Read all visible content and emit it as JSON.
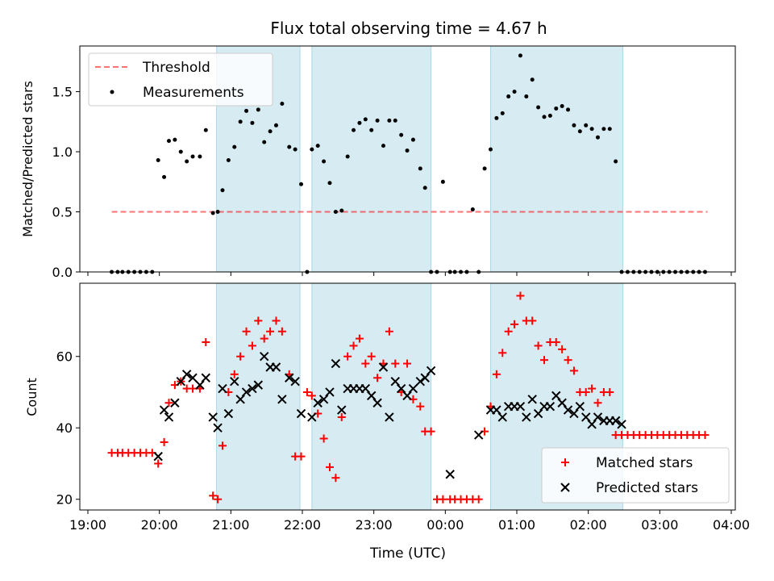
{
  "figure": {
    "title": "Flux total observing time = 4.67 h",
    "xlabel": "Time (UTC)"
  },
  "colors": {
    "band": "#add8e6",
    "threshold": "#ff0000",
    "measurement": "#000000",
    "matched": "#ff0000",
    "predicted": "#000000"
  },
  "chart_data": [
    {
      "type": "scatter",
      "ylabel": "Matched/Predicted stars",
      "xlim": [
        "19:00",
        "04:00"
      ],
      "ylim": [
        0,
        1.88
      ],
      "yticks": [
        "0.0",
        "0.5",
        "1.0",
        "1.5"
      ],
      "legend_position": "upper left",
      "shaded_spans": [
        [
          "20:48",
          "21:58"
        ],
        [
          "22:08",
          "23:48"
        ],
        [
          "00:38",
          "02:29"
        ]
      ],
      "threshold": {
        "name": "Threshold",
        "value": 0.5,
        "x_range": [
          "19:20",
          "03:40"
        ]
      },
      "series": [
        {
          "name": "Measurements",
          "x": [
            "19:20",
            "19:25",
            "19:29",
            "19:34",
            "19:39",
            "19:44",
            "19:49",
            "19:54",
            "19:59",
            "20:04",
            "20:08",
            "20:13",
            "20:18",
            "20:23",
            "20:28",
            "20:34",
            "20:39",
            "20:45",
            "20:49",
            "20:53",
            "20:58",
            "21:03",
            "21:08",
            "21:13",
            "21:18",
            "21:23",
            "21:28",
            "21:33",
            "21:38",
            "21:43",
            "21:49",
            "21:54",
            "21:59",
            "22:04",
            "22:08",
            "22:13",
            "22:18",
            "22:23",
            "22:28",
            "22:33",
            "22:38",
            "22:43",
            "22:48",
            "22:53",
            "22:58",
            "23:03",
            "23:08",
            "23:13",
            "23:18",
            "23:23",
            "23:28",
            "23:33",
            "23:39",
            "23:43",
            "23:48",
            "23:53",
            "23:58",
            "00:04",
            "00:08",
            "00:13",
            "00:18",
            "00:23",
            "00:28",
            "00:33",
            "00:38",
            "00:43",
            "00:48",
            "00:53",
            "00:58",
            "01:03",
            "01:08",
            "01:13",
            "01:18",
            "01:23",
            "01:28",
            "01:33",
            "01:38",
            "01:43",
            "01:48",
            "01:53",
            "01:58",
            "02:03",
            "02:08",
            "02:13",
            "02:18",
            "02:23",
            "02:28",
            "02:33",
            "02:38",
            "02:43",
            "02:48",
            "02:53",
            "02:58",
            "03:03",
            "03:08",
            "03:13",
            "03:18",
            "03:23",
            "03:28",
            "03:33",
            "03:38"
          ],
          "y": [
            0,
            0,
            0,
            0,
            0,
            0,
            0,
            0,
            0.93,
            0.79,
            1.09,
            1.1,
            1.0,
            0.92,
            0.96,
            0.96,
            1.18,
            0.49,
            0.5,
            0.68,
            0.93,
            1.04,
            1.25,
            1.34,
            1.24,
            1.35,
            1.08,
            1.17,
            1.22,
            1.4,
            1.04,
            1.02,
            0.73,
            0,
            1.02,
            1.05,
            0.92,
            0.74,
            0.5,
            0.51,
            0.96,
            1.18,
            1.24,
            1.27,
            1.18,
            1.26,
            1.05,
            1.26,
            1.26,
            1.14,
            1.01,
            1.1,
            0.86,
            0.7,
            0,
            0,
            0.75,
            0,
            0,
            0,
            0,
            0.52,
            0,
            0.86,
            1.02,
            1.28,
            1.32,
            1.46,
            1.5,
            1.8,
            1.46,
            1.6,
            1.37,
            1.29,
            1.3,
            1.36,
            1.38,
            1.35,
            1.22,
            1.17,
            1.22,
            1.19,
            1.12,
            1.19,
            1.19,
            0.92,
            0,
            0,
            0,
            0,
            0,
            0,
            0,
            0,
            0,
            0,
            0,
            0,
            0,
            0,
            0
          ]
        }
      ]
    },
    {
      "type": "scatter",
      "ylabel": "Count",
      "xlabel": "Time (UTC)",
      "xlim": [
        "19:00",
        "04:00"
      ],
      "ylim": [
        17,
        80.5
      ],
      "xticks": [
        "19:00",
        "20:00",
        "21:00",
        "22:00",
        "23:00",
        "00:00",
        "01:00",
        "02:00",
        "03:00",
        "04:00"
      ],
      "yticks": [
        "20",
        "40",
        "60"
      ],
      "legend_position": "lower right",
      "shaded_spans": [
        [
          "20:48",
          "21:58"
        ],
        [
          "22:08",
          "23:48"
        ],
        [
          "00:38",
          "02:29"
        ]
      ],
      "series": [
        {
          "name": "Matched stars",
          "x": [
            "19:20",
            "19:25",
            "19:29",
            "19:34",
            "19:39",
            "19:44",
            "19:49",
            "19:54",
            "19:59",
            "20:04",
            "20:08",
            "20:13",
            "20:18",
            "20:23",
            "20:28",
            "20:34",
            "20:39",
            "20:45",
            "20:49",
            "20:53",
            "20:58",
            "21:03",
            "21:08",
            "21:13",
            "21:18",
            "21:23",
            "21:28",
            "21:33",
            "21:38",
            "21:43",
            "21:49",
            "21:54",
            "21:59",
            "22:04",
            "22:08",
            "22:13",
            "22:18",
            "22:23",
            "22:28",
            "22:33",
            "22:38",
            "22:43",
            "22:48",
            "22:53",
            "22:58",
            "23:03",
            "23:08",
            "23:13",
            "23:18",
            "23:23",
            "23:28",
            "23:33",
            "23:39",
            "23:43",
            "23:48",
            "23:53",
            "23:58",
            "00:04",
            "00:08",
            "00:13",
            "00:18",
            "00:23",
            "00:28",
            "00:33",
            "00:38",
            "00:43",
            "00:48",
            "00:53",
            "00:58",
            "01:03",
            "01:08",
            "01:13",
            "01:18",
            "01:23",
            "01:28",
            "01:33",
            "01:38",
            "01:43",
            "01:48",
            "01:53",
            "01:58",
            "02:03",
            "02:08",
            "02:13",
            "02:18",
            "02:23",
            "02:28",
            "02:33",
            "02:38",
            "02:43",
            "02:48",
            "02:53",
            "02:58",
            "03:03",
            "03:08",
            "03:13",
            "03:18",
            "03:23",
            "03:28",
            "03:33",
            "03:38"
          ],
          "y": [
            33,
            33,
            33,
            33,
            33,
            33,
            33,
            33,
            30,
            36,
            47,
            52,
            53,
            51,
            51,
            51,
            64,
            21,
            20,
            35,
            50,
            55,
            60,
            67,
            63,
            70,
            65,
            67,
            70,
            67,
            55,
            32,
            32,
            50,
            49,
            44,
            37,
            29,
            26,
            43,
            60,
            63,
            65,
            58,
            60,
            54,
            58,
            67,
            58,
            50,
            58,
            48,
            46,
            39,
            39,
            20,
            20,
            20,
            20,
            20,
            20,
            20,
            20,
            39,
            46,
            55,
            61,
            67,
            69,
            77,
            70,
            70,
            63,
            59,
            64,
            64,
            62,
            59,
            56,
            50,
            50,
            51,
            47,
            50,
            50,
            38,
            38,
            38,
            38,
            38,
            38,
            38,
            38,
            38,
            38,
            38,
            38,
            38,
            38,
            38,
            38
          ]
        },
        {
          "name": "Predicted stars",
          "x": [
            "19:59",
            "20:04",
            "20:08",
            "20:13",
            "20:18",
            "20:23",
            "20:28",
            "20:34",
            "20:39",
            "20:45",
            "20:49",
            "20:53",
            "20:58",
            "21:03",
            "21:08",
            "21:13",
            "21:18",
            "21:23",
            "21:28",
            "21:33",
            "21:38",
            "21:43",
            "21:49",
            "21:54",
            "21:59",
            "22:08",
            "22:13",
            "22:18",
            "22:23",
            "22:28",
            "22:33",
            "22:38",
            "22:43",
            "22:48",
            "22:53",
            "22:58",
            "23:03",
            "23:08",
            "23:13",
            "23:18",
            "23:23",
            "23:28",
            "23:33",
            "23:39",
            "23:43",
            "23:48",
            "00:04",
            "00:28",
            "00:38",
            "00:43",
            "00:48",
            "00:53",
            "00:58",
            "01:03",
            "01:08",
            "01:13",
            "01:18",
            "01:23",
            "01:28",
            "01:33",
            "01:38",
            "01:43",
            "01:48",
            "01:53",
            "01:58",
            "02:03",
            "02:08",
            "02:13",
            "02:18",
            "02:23",
            "02:28"
          ],
          "y": [
            32,
            45,
            43,
            47,
            53,
            55,
            54,
            52,
            54,
            43,
            40,
            51,
            44,
            53,
            48,
            50,
            51,
            52,
            60,
            57,
            57,
            48,
            54,
            53,
            44,
            43,
            47,
            48,
            50,
            58,
            45,
            51,
            51,
            51,
            51,
            49,
            47,
            57,
            43,
            53,
            51,
            49,
            51,
            53,
            54,
            56,
            27,
            38,
            45,
            45,
            43,
            46,
            46,
            46,
            43,
            48,
            44,
            46,
            46,
            49,
            47,
            45,
            44,
            46,
            43,
            41,
            43,
            42,
            42,
            42,
            41
          ]
        }
      ]
    }
  ]
}
